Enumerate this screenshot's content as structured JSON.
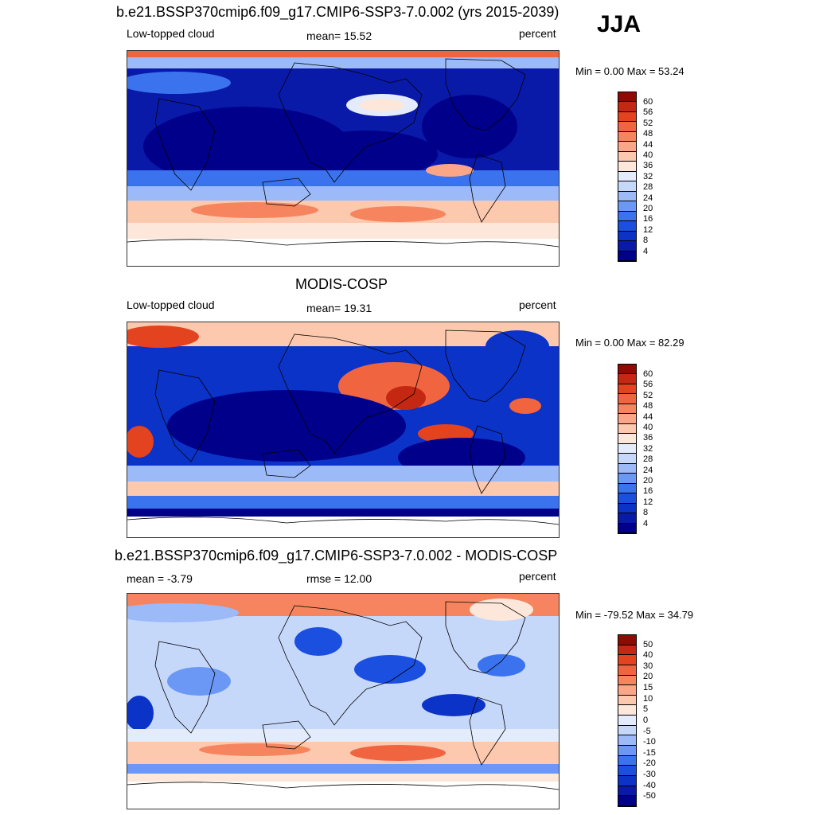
{
  "season": "JJA",
  "palette": {
    "cloud": [
      "#00008b",
      "#0a1aa8",
      "#0b33c8",
      "#1a4fe0",
      "#3b73ef",
      "#6b98f5",
      "#9cbaf8",
      "#c6d8fa",
      "#e4ecfb",
      "#fde7da",
      "#fcc8ae",
      "#fba687",
      "#f6855f",
      "#f06540",
      "#e3431f",
      "#c42812",
      "#8e0b04"
    ],
    "diff": [
      "#00008b",
      "#0a1aa8",
      "#0b33c8",
      "#1a4fe0",
      "#3b73ef",
      "#6b98f5",
      "#9cbaf8",
      "#c6d8fa",
      "#e4ecfb",
      "#fde7da",
      "#fcc8ae",
      "#fba687",
      "#f6855f",
      "#f06540",
      "#e3431f",
      "#c42812",
      "#8e0b04"
    ]
  },
  "panels": [
    {
      "title": "b.e21.BSSP370cmip6.f09_g17.CMIP6-SSP3-7.0.002 (yrs 2015-2039)",
      "left_label": "Low-topped cloud",
      "center_label": "mean=  15.52",
      "right_label": "percent",
      "minmax": "Min =   0.00 Max =  53.24",
      "colorbar_ticks": [
        "60",
        "56",
        "52",
        "48",
        "44",
        "40",
        "36",
        "32",
        "28",
        "24",
        "20",
        "16",
        "12",
        "8",
        "4"
      ]
    },
    {
      "title": "MODIS-COSP",
      "left_label": "Low-topped cloud",
      "center_label": "mean=  19.31",
      "right_label": "percent",
      "minmax": "Min =   0.00 Max =  82.29",
      "colorbar_ticks": [
        "60",
        "56",
        "52",
        "48",
        "44",
        "40",
        "36",
        "32",
        "28",
        "24",
        "20",
        "16",
        "12",
        "8",
        "4"
      ]
    },
    {
      "title": "b.e21.BSSP370cmip6.f09_g17.CMIP6-SSP3-7.0.002 - MODIS-COSP",
      "left_label": "mean =  -3.79",
      "center_label": "rmse =  12.00",
      "right_label": "percent",
      "minmax": "Min = -79.52 Max =  34.79",
      "colorbar_ticks": [
        "50",
        "40",
        "30",
        "20",
        "15",
        "10",
        "5",
        "0",
        "-5",
        "-10",
        "-15",
        "-20",
        "-30",
        "-40",
        "-50"
      ]
    }
  ]
}
